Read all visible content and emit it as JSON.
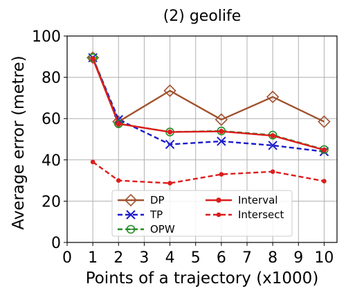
{
  "chart_data": {
    "type": "line",
    "title": "(2) geolife",
    "xlabel": "Points of a trajectory (x1000)",
    "ylabel": "Average error (metre)",
    "xlim": [
      0,
      10.5
    ],
    "ylim": [
      0,
      100
    ],
    "xticks": [
      "0",
      "1",
      "2",
      "3",
      "4",
      "5",
      "6",
      "7",
      "8",
      "9",
      "10"
    ],
    "yticks": [
      "0",
      "20",
      "40",
      "60",
      "80",
      "100"
    ],
    "grid": true,
    "legend_position": "lower-center",
    "x": [
      1,
      2,
      4,
      6,
      8,
      10
    ],
    "series": [
      {
        "name": "DP",
        "values": [
          89.5,
          58.5,
          73.5,
          59.5,
          70.5,
          58.5
        ],
        "color": "#a0522d",
        "dash": "solid",
        "marker": "diamond"
      },
      {
        "name": "TP",
        "values": [
          89.5,
          59.5,
          47.5,
          49,
          47,
          44
        ],
        "color": "#1a1acd",
        "dash": "dashed",
        "marker": "x"
      },
      {
        "name": "OPW",
        "values": [
          89.5,
          57.5,
          53.5,
          54,
          52,
          45
        ],
        "color": "#228b22",
        "dash": "dashed",
        "marker": "circle-open"
      },
      {
        "name": "Interval",
        "values": [
          89,
          57.5,
          53.5,
          53.8,
          51.7,
          44.8
        ],
        "color": "#dd1c1c",
        "dash": "solid",
        "marker": "dot"
      },
      {
        "name": "Intersect",
        "values": [
          39,
          30,
          28.7,
          33,
          34.3,
          29.7
        ],
        "color": "#dd1c1c",
        "dash": "dashed",
        "marker": "dot-small"
      }
    ]
  }
}
